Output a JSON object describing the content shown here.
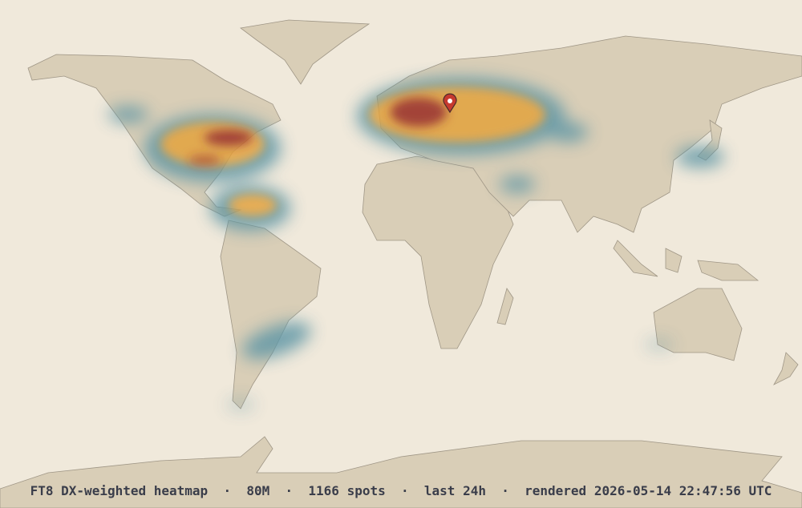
{
  "caption": "FT8 DX-weighted heatmap  ·  80M  ·  1166 spots  ·  last 24h  ·  rendered 2026-05-14 22:47:56 UTC"
}
